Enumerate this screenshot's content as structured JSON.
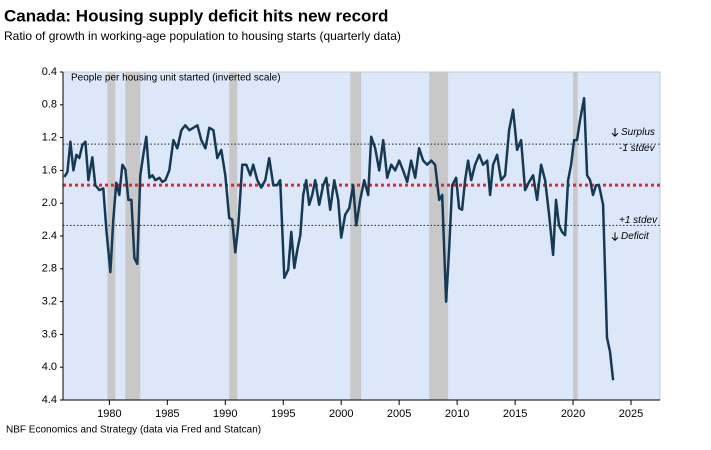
{
  "chart_data": {
    "type": "line",
    "title": "Canada: Housing supply deficit hits new record",
    "subtitle": "Ratio of growth in working-age population to housing starts (quarterly data)",
    "y_axis_label": "People per housing unit started (inverted scale)",
    "source": "NBF Economics and Strategy (data via Fred and Statcan)",
    "inverted": true,
    "background": "#dce8f9",
    "xlim": [
      1976,
      2027.5
    ],
    "xticks": [
      1980,
      1985,
      1990,
      1995,
      2000,
      2005,
      2010,
      2015,
      2020,
      2025
    ],
    "ylim": [
      0.4,
      4.4
    ],
    "yticks": [
      0.4,
      0.8,
      1.2,
      1.6,
      {
        "value": 2,
        "label": "2.0"
      },
      2.4,
      2.8,
      3.2,
      3.6,
      {
        "value": 4,
        "label": "4.0"
      },
      4.4
    ],
    "recessions": [
      [
        1979.83,
        1980.52
      ],
      [
        1981.38,
        1982.67
      ],
      [
        1990.34,
        1991.03
      ],
      [
        2000.78,
        2001.72
      ],
      [
        2007.59,
        2009.22
      ],
      [
        2020.0,
        2020.4
      ]
    ],
    "recession_color": "#c8c8c8",
    "reference_lines": [
      {
        "value": 1.78,
        "color": "#e8262a",
        "labels": []
      },
      {
        "value": 1.28,
        "color": "#222222",
        "labels": [
          "Surplus",
          "-1 stdev"
        ]
      },
      {
        "value": 2.27,
        "color": "#222222",
        "labels": [
          "+1 stdev",
          "Deficit"
        ]
      }
    ],
    "series": [
      {
        "name": "Ratio",
        "color": "#163a55",
        "x": [
          1976.12,
          1976.38,
          1976.64,
          1976.9,
          1977.16,
          1977.41,
          1977.67,
          1977.93,
          1978.19,
          1978.53,
          1978.79,
          1979.14,
          1979.48,
          1979.74,
          1980.09,
          1980.34,
          1980.6,
          1980.86,
          1981.12,
          1981.38,
          1981.64,
          1981.9,
          1982.16,
          1982.41,
          1982.67,
          1982.93,
          1983.19,
          1983.45,
          1983.71,
          1983.97,
          1984.31,
          1984.57,
          1984.83,
          1985.17,
          1985.52,
          1985.86,
          1986.21,
          1986.55,
          1986.9,
          1987.24,
          1987.59,
          1987.93,
          1988.28,
          1988.62,
          1988.97,
          1989.31,
          1989.66,
          1990.0,
          1990.34,
          1990.6,
          1990.86,
          1991.12,
          1991.47,
          1991.81,
          1992.16,
          1992.41,
          1992.76,
          1993.1,
          1993.45,
          1993.79,
          1994.14,
          1994.48,
          1994.74,
          1995.09,
          1995.43,
          1995.69,
          1995.95,
          1996.21,
          1996.47,
          1996.72,
          1996.98,
          1997.24,
          1997.5,
          1997.76,
          1998.1,
          1998.45,
          1998.71,
          1999.05,
          1999.4,
          1999.74,
          2000.0,
          2000.34,
          2000.69,
          2001.03,
          2001.29,
          2001.64,
          2001.98,
          2002.33,
          2002.59,
          2002.93,
          2003.28,
          2003.62,
          2003.97,
          2004.31,
          2004.66,
          2005.0,
          2005.34,
          2005.69,
          2006.03,
          2006.38,
          2006.72,
          2007.07,
          2007.41,
          2007.76,
          2008.1,
          2008.45,
          2008.71,
          2009.05,
          2009.31,
          2009.57,
          2009.91,
          2010.17,
          2010.43,
          2010.69,
          2010.95,
          2011.21,
          2011.55,
          2011.9,
          2012.24,
          2012.59,
          2012.84,
          2013.1,
          2013.45,
          2013.79,
          2014.14,
          2014.48,
          2014.83,
          2015.17,
          2015.52,
          2015.86,
          2016.21,
          2016.55,
          2016.9,
          2017.24,
          2017.59,
          2017.93,
          2018.28,
          2018.53,
          2018.79,
          2019.05,
          2019.31,
          2019.57,
          2019.83,
          2020.09,
          2020.34,
          2020.6,
          2020.95,
          2021.21,
          2021.47,
          2021.72,
          2021.98,
          2022.24,
          2022.59,
          2022.93,
          2023.19,
          2023.45
        ],
        "values": [
          1.68,
          1.62,
          1.25,
          1.6,
          1.41,
          1.45,
          1.29,
          1.25,
          1.72,
          1.44,
          1.78,
          1.84,
          1.82,
          2.33,
          2.84,
          2.2,
          1.75,
          1.9,
          1.53,
          1.59,
          1.96,
          1.96,
          2.67,
          2.74,
          1.66,
          1.41,
          1.19,
          1.69,
          1.66,
          1.72,
          1.69,
          1.74,
          1.72,
          1.6,
          1.23,
          1.33,
          1.11,
          1.05,
          1.11,
          1.08,
          1.05,
          1.23,
          1.33,
          1.08,
          1.11,
          1.45,
          1.35,
          1.66,
          2.18,
          2.2,
          2.6,
          2.27,
          1.53,
          1.53,
          1.66,
          1.53,
          1.72,
          1.81,
          1.72,
          1.45,
          1.78,
          1.78,
          1.72,
          2.91,
          2.81,
          2.35,
          2.79,
          2.57,
          2.39,
          1.9,
          1.72,
          2.02,
          1.9,
          1.72,
          2.02,
          1.78,
          1.69,
          2.08,
          1.72,
          1.96,
          2.42,
          2.14,
          2.06,
          1.78,
          2.27,
          1.96,
          1.72,
          1.9,
          1.19,
          1.33,
          1.6,
          1.23,
          1.69,
          1.53,
          1.6,
          1.48,
          1.6,
          1.74,
          1.48,
          1.69,
          1.33,
          1.48,
          1.53,
          1.48,
          1.53,
          1.96,
          1.9,
          3.2,
          2.57,
          1.78,
          1.69,
          2.06,
          2.08,
          1.72,
          1.48,
          1.72,
          1.53,
          1.41,
          1.53,
          1.48,
          1.9,
          1.53,
          1.41,
          1.72,
          1.66,
          1.11,
          0.86,
          1.35,
          1.23,
          1.84,
          1.74,
          1.66,
          1.96,
          1.53,
          1.72,
          2.14,
          2.63,
          1.96,
          2.27,
          2.35,
          2.39,
          1.72,
          1.53,
          1.23,
          1.23,
          0.99,
          0.72,
          1.66,
          1.72,
          1.9,
          1.78,
          1.78,
          2.02,
          3.64,
          3.81,
          4.16
        ]
      }
    ]
  }
}
